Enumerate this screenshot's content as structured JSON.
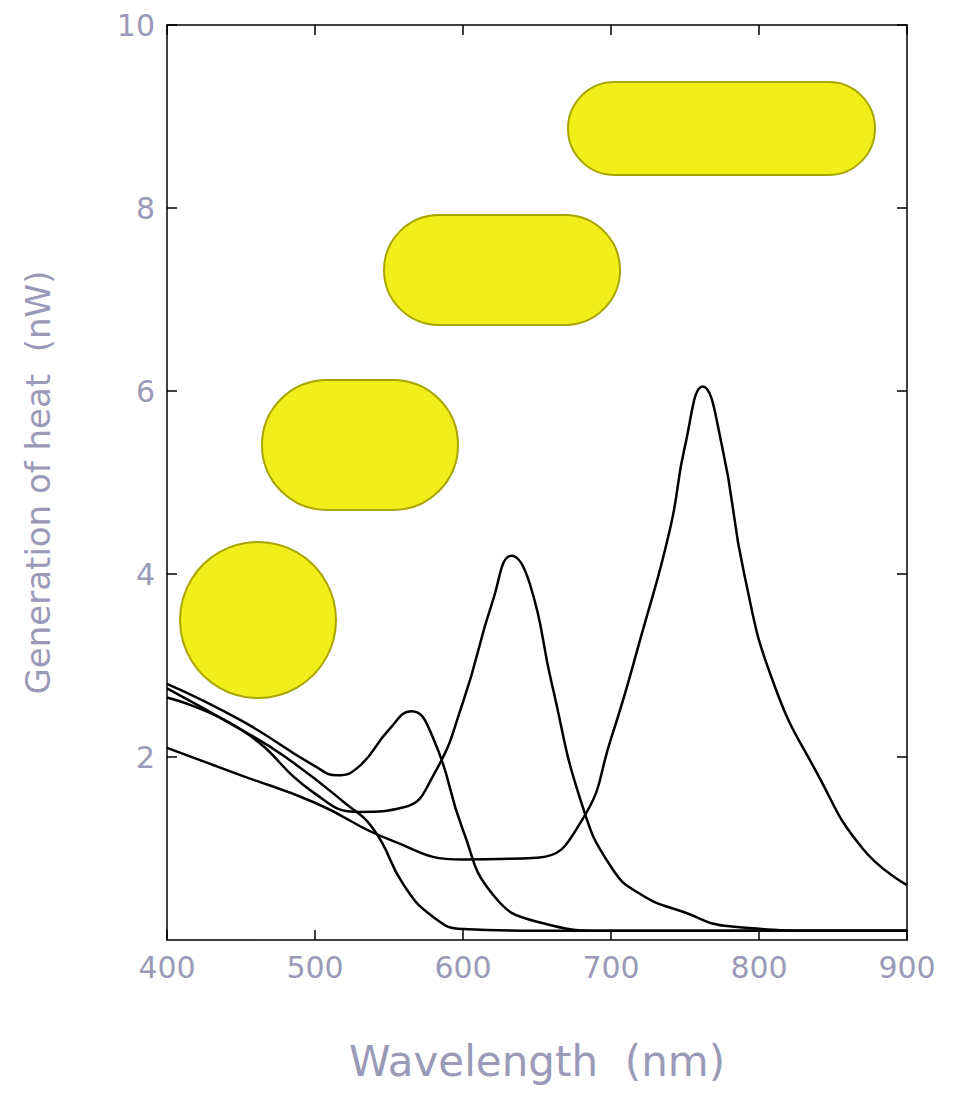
{
  "chart_data": {
    "type": "line",
    "xlabel": "Wavelength  (nm)",
    "ylabel": "Generation of heat  (nW)",
    "xlim": [
      400,
      900
    ],
    "xticks": [
      400,
      500,
      600,
      700,
      800,
      900
    ],
    "ylim": [
      0,
      10
    ],
    "yticks": [
      2,
      4,
      6,
      8,
      10
    ],
    "grid": false,
    "line_style": "solid",
    "series": [
      {
        "color": "#000000",
        "x": [
          400,
          450,
          480,
          520,
          540,
          560,
          580,
          600,
          650,
          700,
          800,
          900
        ],
        "values": [
          2.75,
          2.3,
          2.0,
          1.5,
          1.2,
          0.6,
          0.25,
          0.12,
          0.1,
          0.1,
          0.1,
          0.1
        ]
      },
      {
        "color": "#000000",
        "x": [
          400,
          450,
          500,
          515,
          530,
          550,
          565,
          580,
          600,
          620,
          650,
          700,
          800,
          900
        ],
        "values": [
          2.8,
          2.4,
          1.9,
          1.8,
          1.9,
          2.3,
          2.5,
          2.2,
          1.2,
          0.5,
          0.2,
          0.1,
          0.1,
          0.1
        ]
      },
      {
        "color": "#000000",
        "x": [
          400,
          450,
          500,
          530,
          560,
          580,
          600,
          620,
          633,
          645,
          660,
          680,
          700,
          720,
          750,
          780,
          850,
          900
        ],
        "values": [
          2.65,
          2.3,
          1.6,
          1.4,
          1.45,
          1.8,
          2.6,
          3.7,
          4.2,
          3.9,
          2.8,
          1.5,
          0.8,
          0.5,
          0.3,
          0.15,
          0.1,
          0.1
        ]
      },
      {
        "color": "#000000",
        "x": [
          400,
          450,
          500,
          550,
          600,
          650,
          680,
          700,
          720,
          740,
          750,
          762,
          775,
          790,
          810,
          840,
          870,
          900
        ],
        "values": [
          2.1,
          1.8,
          1.5,
          1.1,
          0.88,
          0.9,
          1.3,
          2.2,
          3.3,
          4.5,
          5.4,
          6.05,
          5.4,
          4.0,
          2.8,
          1.8,
          1.0,
          0.6
        ]
      }
    ]
  }
}
